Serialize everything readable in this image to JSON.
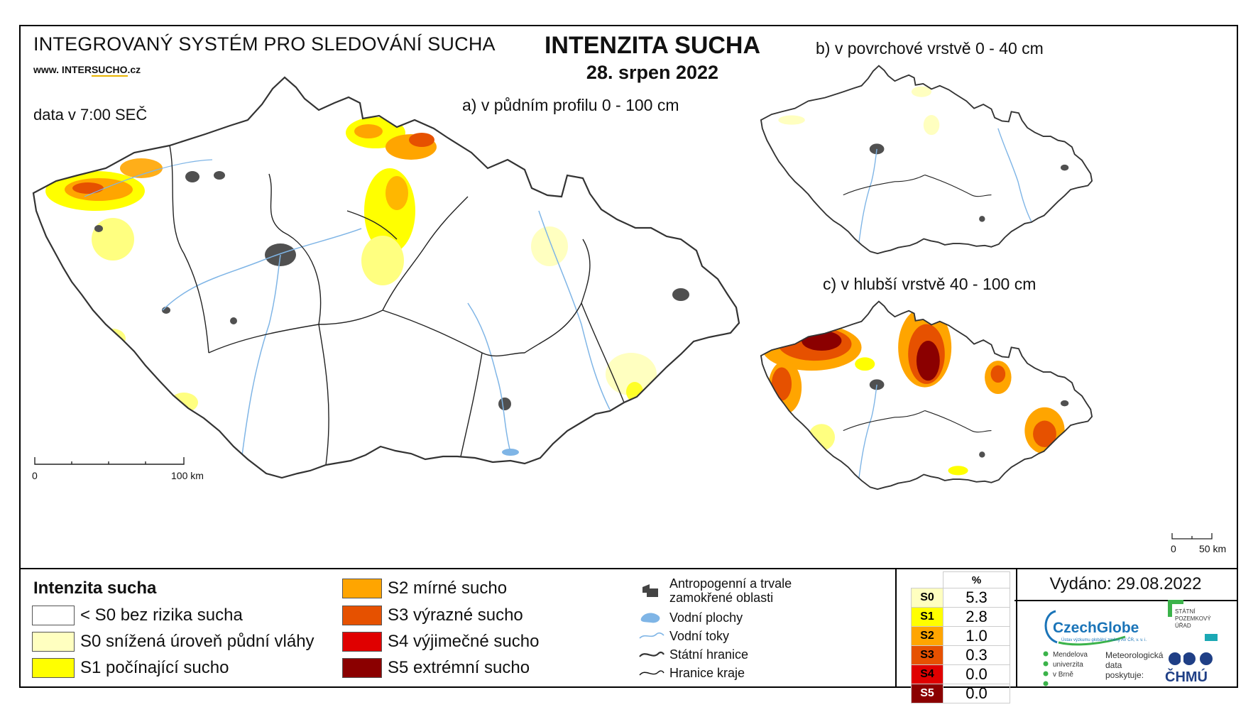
{
  "header": {
    "system_title": "INTEGROVANÝ SYSTÉM PRO SLEDOVÁNÍ SUCHA",
    "website_prefix": "www. INTER",
    "website_brand": "SUCHO",
    "website_suffix": ".cz",
    "data_time": "data v 7:00 SEČ",
    "title": "INTENZITA SUCHA",
    "date": "28. srpen 2022"
  },
  "maps": {
    "main_label": "a) v půdním profilu 0 - 100 cm",
    "surface_label": "b) v povrchové vrstvě 0 - 40 cm",
    "deep_label": "c) v hlubší vrstvě 40 - 100 cm",
    "main_scale": {
      "start": "0",
      "end": "100 km"
    },
    "small_scale": {
      "start": "0",
      "end": "50 km"
    }
  },
  "legend": {
    "title": "Intenzita sucha",
    "categories": [
      {
        "label": "< S0 bez rizika sucha",
        "color": "#ffffff"
      },
      {
        "label": "S0 snížená úroveň půdní vláhy",
        "color": "#ffffc0"
      },
      {
        "label": "S1 počínající sucho",
        "color": "#ffff00"
      },
      {
        "label": "S2 mírné sucho",
        "color": "#ffa500"
      },
      {
        "label": "S3 výrazné sucho",
        "color": "#e65100"
      },
      {
        "label": "S4 výjimečné sucho",
        "color": "#e00000"
      },
      {
        "label": "S5 extrémní sucho",
        "color": "#8b0000"
      }
    ],
    "symbols": [
      {
        "label": "Antropogenní a trvale zamokřené oblasti",
        "icon": "urban-area-icon"
      },
      {
        "label": "Vodní plochy",
        "icon": "water-body-icon"
      },
      {
        "label": "Vodní toky",
        "icon": "river-icon"
      },
      {
        "label": "Státní hranice",
        "icon": "state-border-icon"
      },
      {
        "label": "Hranice kraje",
        "icon": "region-border-icon"
      }
    ]
  },
  "percent_table": {
    "header": "%",
    "rows": [
      {
        "label": "S0",
        "value": "5.3",
        "color": "#ffffc0"
      },
      {
        "label": "S1",
        "value": "2.8",
        "color": "#ffff00"
      },
      {
        "label": "S2",
        "value": "1.0",
        "color": "#ffa500"
      },
      {
        "label": "S3",
        "value": "0.3",
        "color": "#e65100"
      },
      {
        "label": "S4",
        "value": "0.0",
        "color": "#e00000"
      },
      {
        "label": "S5",
        "value": "0.0",
        "color": "#8b0000"
      }
    ]
  },
  "issued": "Vydáno: 29.08.2022",
  "logos": {
    "czechglobe": "CzechGlobe",
    "czechglobe_sub": "Ústav výzkumu globální změny AV ČR, v. v. i.",
    "spu": "STÁTNÍ POZEMKOVÝ ÚŘAD",
    "mendel_1": "Mendelova",
    "mendel_2": "univerzita",
    "mendel_3": "v Brně",
    "meteo_1": "Meteorologická",
    "meteo_2": "data",
    "meteo_3": "poskytuje:",
    "chmu": "ČHMÚ"
  }
}
